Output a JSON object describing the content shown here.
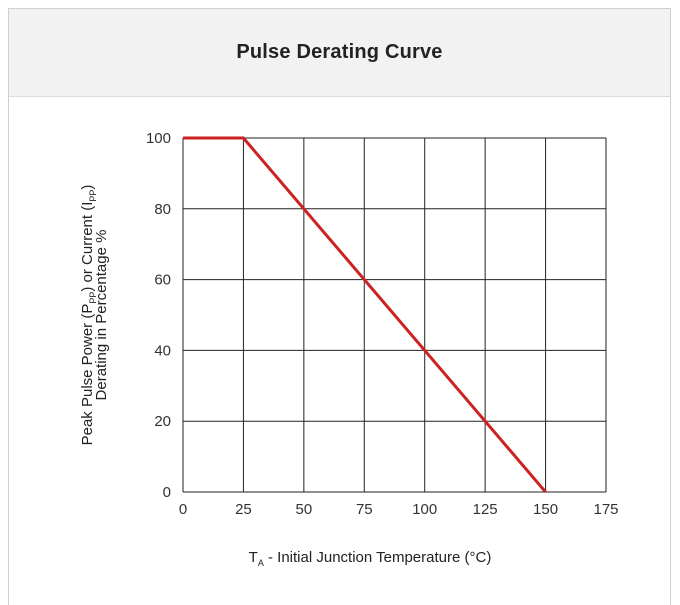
{
  "chart_data": {
    "type": "line",
    "title": "Pulse Derating Curve",
    "xlabel": {
      "pre": "T",
      "sub": "A",
      "post": " - Initial Junction Temperature (°C)"
    },
    "ylabel": {
      "line1": {
        "p1": "Peak Pulse Power (P",
        "s1": "PP",
        "p2": ") or Current (I",
        "s2": "PP",
        "p3": ")"
      },
      "line2": "Derating in Percentage %"
    },
    "xlim": [
      0,
      175
    ],
    "ylim": [
      0,
      100
    ],
    "xticks": [
      "0",
      "25",
      "50",
      "75",
      "100",
      "125",
      "150",
      "175"
    ],
    "yticks": [
      "0",
      "20",
      "40",
      "60",
      "80",
      "100"
    ],
    "grid": true,
    "line_color": "#cc2222",
    "series": [
      {
        "x": [
          0,
          25,
          150
        ],
        "y": [
          100,
          100,
          0
        ]
      }
    ]
  }
}
